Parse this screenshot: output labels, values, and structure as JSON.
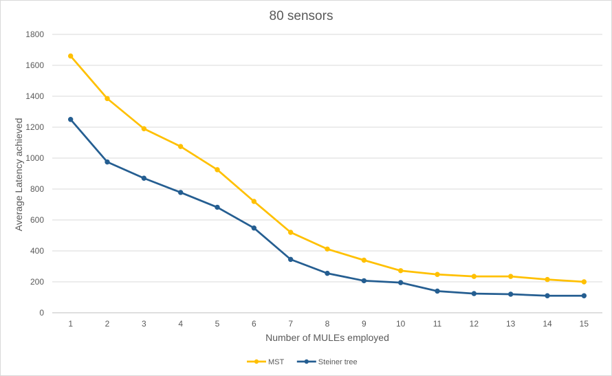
{
  "chart_data": {
    "type": "line",
    "title": "80 sensors",
    "xlabel": "Number of MULEs employed",
    "ylabel": "Average Latency achieved",
    "x": [
      1,
      2,
      3,
      4,
      5,
      6,
      7,
      8,
      9,
      10,
      11,
      12,
      13,
      14,
      15
    ],
    "ylim": [
      0,
      1800
    ],
    "yticks": [
      0,
      200,
      400,
      600,
      800,
      1000,
      1200,
      1400,
      1600,
      1800
    ],
    "grid": true,
    "legend_position": "bottom",
    "series": [
      {
        "name": "MST",
        "color": "#FFC000",
        "values": [
          1660,
          1385,
          1190,
          1075,
          925,
          720,
          520,
          412,
          340,
          272,
          248,
          235,
          235,
          215,
          200
        ]
      },
      {
        "name": "Steiner tree",
        "color": "#255E91",
        "values": [
          1250,
          975,
          870,
          778,
          682,
          548,
          345,
          255,
          207,
          195,
          140,
          124,
          120,
          110,
          110
        ]
      }
    ]
  }
}
